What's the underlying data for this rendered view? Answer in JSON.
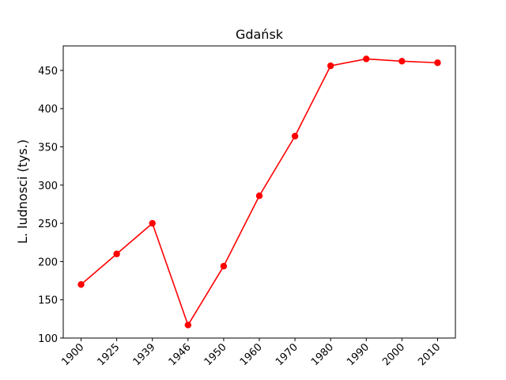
{
  "chart_data": {
    "type": "line",
    "title": "Gdańsk",
    "xlabel": "",
    "ylabel": "L. ludnosci (tys.)",
    "categories": [
      "1900",
      "1925",
      "1939",
      "1946",
      "1950",
      "1960",
      "1970",
      "1980",
      "1990",
      "2000",
      "2010"
    ],
    "series": [
      {
        "values": [
          170,
          210,
          250,
          117,
          194,
          286,
          364,
          456,
          465,
          462,
          460
        ]
      }
    ],
    "ylim": [
      100,
      482
    ],
    "yticks": [
      100,
      150,
      200,
      250,
      300,
      350,
      400,
      450
    ],
    "grid": false,
    "legend": "none",
    "color": "#ff0000"
  }
}
